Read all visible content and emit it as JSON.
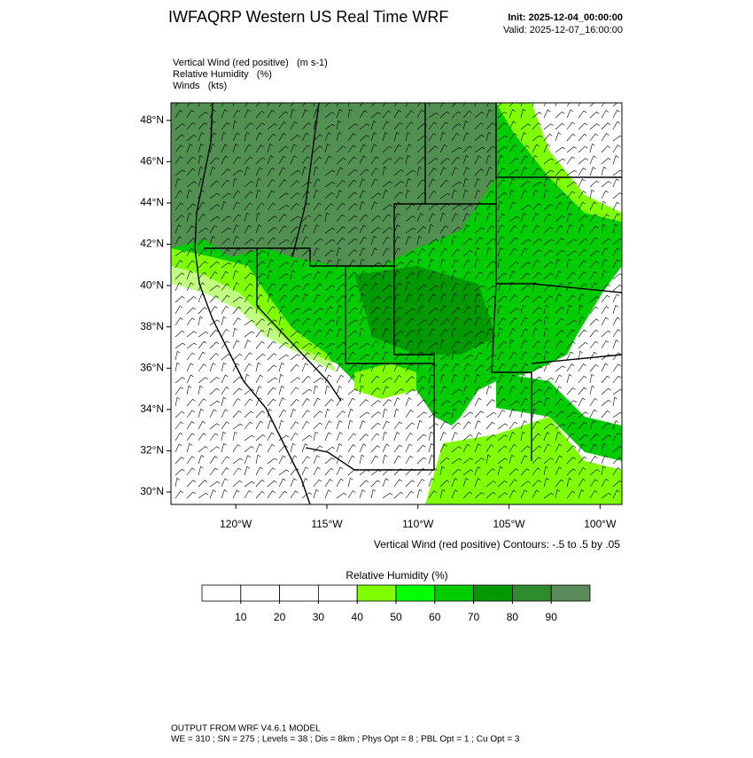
{
  "header": {
    "title": "IWFAQRP Western US Real Time WRF",
    "init": "Init: 2025-12-04_00:00:00",
    "valid": "Valid: 2025-12-07_16:00:00"
  },
  "fields": [
    "Vertical Wind (red positive)   (m s-1)",
    "Relative Humidity   (%)",
    "Winds   (kts)"
  ],
  "map": {
    "latlim": [
      29.4,
      48.85
    ],
    "lonlim": [
      -123.56,
      -98.8
    ],
    "lat_ticks": [
      {
        "value": 30,
        "label": "30°N"
      },
      {
        "value": 32,
        "label": "32°N"
      },
      {
        "value": 34,
        "label": "34°N"
      },
      {
        "value": 36,
        "label": "36°N"
      },
      {
        "value": 38,
        "label": "38°N"
      },
      {
        "value": 40,
        "label": "40°N"
      },
      {
        "value": 42,
        "label": "42°N"
      },
      {
        "value": 44,
        "label": "44°N"
      },
      {
        "value": 46,
        "label": "46°N"
      },
      {
        "value": 48,
        "label": "48°N"
      }
    ],
    "lon_ticks": [
      {
        "value": -120,
        "label": "120°W"
      },
      {
        "value": -115,
        "label": "115°W"
      },
      {
        "value": -110,
        "label": "110°W"
      },
      {
        "value": -105,
        "label": "105°W"
      },
      {
        "value": -100,
        "label": "100°W"
      }
    ],
    "contour_note": "Vertical Wind (red positive) Contours: -.5 to .5 by .05"
  },
  "colorbar": {
    "title": "Relative Humidity  (%)",
    "levels": [
      10,
      20,
      30,
      40,
      50,
      60,
      70,
      80,
      90
    ],
    "colors": [
      "#ffffff",
      "#ffffff",
      "#ffffff",
      "#ffffff",
      "#80ff00",
      "#00ff00",
      "#00cc00",
      "#009900",
      "#2e8b2e",
      "#5a8a5a"
    ]
  },
  "footer": [
    "OUTPUT FROM WRF V4.6.1 MODEL",
    "WE = 310 ; SN = 275 ; Levels = 38 ; Dis = 8km ; Phys Opt = 8 ; PBL Opt = 1 ; Cu Opt = 3"
  ]
}
